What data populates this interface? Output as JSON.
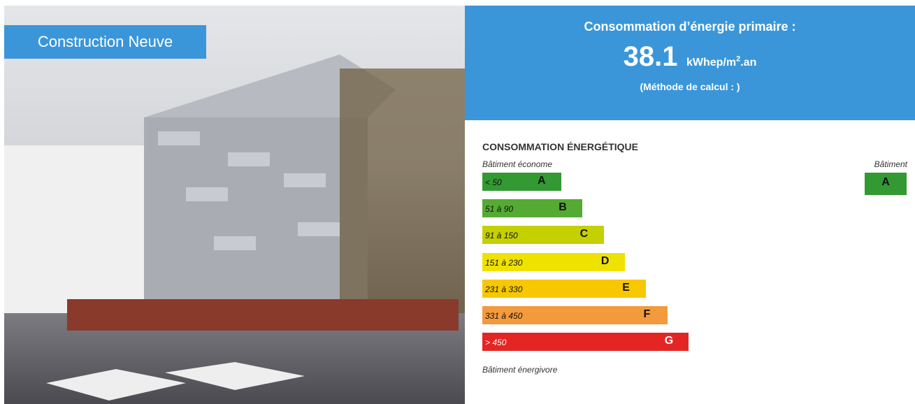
{
  "badge": "Construction Neuve",
  "header": {
    "title": "Consommation d’énergie primaire :",
    "value": "38.1",
    "unit_base": "kWhep/m",
    "unit_exp": "2",
    "unit_tail": ".an",
    "method": "(Méthode de calcul : )"
  },
  "label": {
    "title": "CONSOMMATION ÉNERGÉTIQUE",
    "top_note": "Bâtiment économe",
    "bottom_note": "Bâtiment énergivore",
    "building_label": "Bâtiment",
    "building_class": "A",
    "classes": [
      {
        "range": "< 50",
        "letter": "A",
        "color": "#339933"
      },
      {
        "range": "51 à 90",
        "letter": "B",
        "color": "#55aa33"
      },
      {
        "range": "91 à 150",
        "letter": "C",
        "color": "#c4d000"
      },
      {
        "range": "151 à 230",
        "letter": "D",
        "color": "#f0e200"
      },
      {
        "range": "231 à 330",
        "letter": "E",
        "color": "#f7c800"
      },
      {
        "range": "331 à 450",
        "letter": "F",
        "color": "#f29a3c"
      },
      {
        "range": "> 450",
        "letter": "G",
        "color": "#e32624"
      }
    ]
  }
}
